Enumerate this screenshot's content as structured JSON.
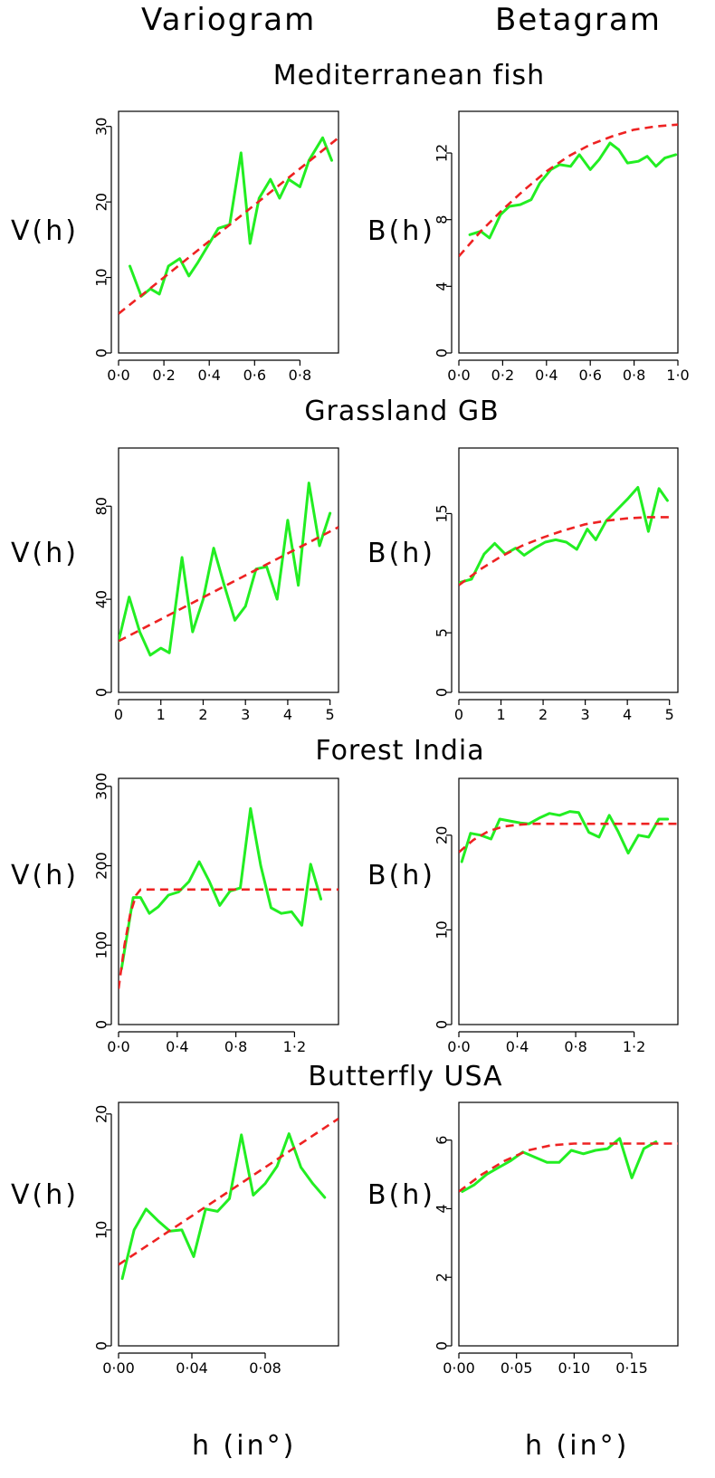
{
  "column_headers": [
    "Variogram",
    "Betagram"
  ],
  "x_axis_label": "h  (in°)",
  "colors": {
    "empirical": "#22ee22",
    "model": "#ee2222"
  },
  "chart_data": [
    {
      "type": "line",
      "title": "Mediterranean fish",
      "panel": "Variogram",
      "ylabel": "V(h)",
      "xlabel": "",
      "xlim": [
        0,
        0.97
      ],
      "ylim": [
        0,
        32
      ],
      "xticks": [
        0,
        0.2,
        0.4,
        0.6,
        0.8
      ],
      "xtick_labels": [
        "0·0",
        "0·2",
        "0·4",
        "0·6",
        "0·8"
      ],
      "yticks": [
        0,
        10,
        20,
        30
      ],
      "ytick_labels": [
        "0",
        "10",
        "20",
        "30"
      ],
      "series": [
        {
          "style": "solid",
          "x": [
            0.05,
            0.1,
            0.14,
            0.18,
            0.22,
            0.27,
            0.31,
            0.35,
            0.4,
            0.44,
            0.49,
            0.54,
            0.58,
            0.62,
            0.67,
            0.71,
            0.75,
            0.8,
            0.84,
            0.9,
            0.94
          ],
          "y": [
            11.5,
            7.5,
            8.5,
            7.8,
            11.5,
            12.5,
            10.2,
            12,
            14.5,
            16.5,
            17,
            26.5,
            14.5,
            20.5,
            23,
            20.5,
            23,
            22,
            25.5,
            28.5,
            25.5
          ]
        },
        {
          "style": "dashed",
          "x": [
            0,
            0.97
          ],
          "y": [
            5.2,
            28.5
          ]
        }
      ]
    },
    {
      "type": "line",
      "title": "",
      "panel": "Betagram",
      "ylabel": "B(h)",
      "xlabel": "",
      "xlim": [
        0,
        1.0
      ],
      "ylim": [
        0,
        14.5
      ],
      "xticks": [
        0,
        0.2,
        0.4,
        0.6,
        0.8,
        1.0
      ],
      "xtick_labels": [
        "0·0",
        "0·2",
        "0·4",
        "0·6",
        "0·8",
        "1·0"
      ],
      "yticks": [
        0,
        4,
        8,
        12
      ],
      "ytick_labels": [
        "0",
        "4",
        "8",
        "12"
      ],
      "series": [
        {
          "style": "solid",
          "x": [
            0.05,
            0.1,
            0.14,
            0.19,
            0.23,
            0.28,
            0.33,
            0.37,
            0.42,
            0.46,
            0.51,
            0.55,
            0.6,
            0.64,
            0.69,
            0.73,
            0.77,
            0.82,
            0.86,
            0.9,
            0.94,
            0.99
          ],
          "y": [
            7.1,
            7.3,
            6.9,
            8.3,
            8.8,
            8.9,
            9.2,
            10.2,
            11,
            11.3,
            11.2,
            11.9,
            11,
            11.6,
            12.6,
            12.2,
            11.4,
            11.5,
            11.8,
            11.2,
            11.7,
            11.9
          ]
        },
        {
          "style": "dashed",
          "x": [
            0,
            0.1,
            0.2,
            0.3,
            0.4,
            0.5,
            0.6,
            0.7,
            0.8,
            0.9,
            1.0
          ],
          "y": [
            5.8,
            7.3,
            8.6,
            9.8,
            10.9,
            11.8,
            12.5,
            13.0,
            13.4,
            13.6,
            13.7
          ]
        }
      ]
    },
    {
      "type": "line",
      "title": "Grassland GB",
      "panel": "Variogram",
      "ylabel": "V(h)",
      "xlabel": "",
      "xlim": [
        0,
        5.2
      ],
      "ylim": [
        0,
        105
      ],
      "xticks": [
        0,
        1,
        2,
        3,
        4,
        5
      ],
      "xtick_labels": [
        "0",
        "1",
        "2",
        "3",
        "4",
        "5"
      ],
      "yticks": [
        0,
        40,
        80
      ],
      "ytick_labels": [
        "0",
        "40",
        "80"
      ],
      "series": [
        {
          "style": "solid",
          "x": [
            0,
            0.25,
            0.5,
            0.75,
            1.0,
            1.2,
            1.5,
            1.75,
            2.0,
            2.25,
            2.5,
            2.75,
            3.0,
            3.25,
            3.5,
            3.75,
            4.0,
            4.25,
            4.5,
            4.75,
            5.0
          ],
          "y": [
            22,
            41,
            26,
            16,
            19,
            17,
            58,
            26,
            40,
            62,
            46,
            31,
            37,
            53,
            54,
            40,
            74,
            46,
            90,
            63,
            77
          ]
        },
        {
          "style": "dashed",
          "x": [
            0,
            5.2
          ],
          "y": [
            22,
            71
          ]
        }
      ]
    },
    {
      "type": "line",
      "title": "",
      "panel": "Betagram",
      "ylabel": "B(h)",
      "xlabel": "",
      "xlim": [
        0,
        5.2
      ],
      "ylim": [
        0,
        20.5
      ],
      "xticks": [
        0,
        1,
        2,
        3,
        4,
        5
      ],
      "xtick_labels": [
        "0",
        "1",
        "2",
        "3",
        "4",
        "5"
      ],
      "yticks": [
        0,
        5,
        15
      ],
      "ytick_labels": [
        "0",
        "5",
        "15"
      ],
      "series": [
        {
          "style": "solid",
          "x": [
            0,
            0.3,
            0.6,
            0.85,
            1.1,
            1.35,
            1.55,
            1.8,
            2.05,
            2.3,
            2.55,
            2.8,
            3.05,
            3.25,
            3.5,
            3.75,
            4.0,
            4.25,
            4.5,
            4.75,
            4.95
          ],
          "y": [
            9.2,
            9.5,
            11.6,
            12.5,
            11.6,
            12.1,
            11.5,
            12.1,
            12.6,
            12.8,
            12.6,
            12,
            13.7,
            12.8,
            14.4,
            15.3,
            16.2,
            17.2,
            13.5,
            17.1,
            16.1
          ]
        },
        {
          "style": "dashed",
          "x": [
            0,
            0.5,
            1.0,
            1.5,
            2.0,
            2.5,
            3.0,
            3.5,
            4.0,
            4.5,
            5.0
          ],
          "y": [
            9.0,
            10.3,
            11.4,
            12.3,
            13.0,
            13.6,
            14.1,
            14.4,
            14.6,
            14.7,
            14.7
          ]
        }
      ]
    },
    {
      "type": "line",
      "title": "Forest India",
      "panel": "Variogram",
      "ylabel": "V(h)",
      "xlabel": "",
      "xlim": [
        0,
        1.5
      ],
      "ylim": [
        0,
        310
      ],
      "xticks": [
        0,
        0.4,
        0.8,
        1.2
      ],
      "xtick_labels": [
        "0·0",
        "0·4",
        "0·8",
        "1·2"
      ],
      "yticks": [
        0,
        100,
        200,
        300
      ],
      "ytick_labels": [
        "0",
        "100",
        "200",
        "300"
      ],
      "series": [
        {
          "style": "solid",
          "x": [
            0.02,
            0.06,
            0.1,
            0.15,
            0.21,
            0.27,
            0.34,
            0.41,
            0.48,
            0.55,
            0.62,
            0.69,
            0.76,
            0.83,
            0.9,
            0.97,
            1.04,
            1.11,
            1.18,
            1.25,
            1.31,
            1.38
          ],
          "y": [
            70,
            115,
            160,
            160,
            140,
            148,
            163,
            167,
            180,
            205,
            180,
            150,
            168,
            172,
            272,
            200,
            147,
            140,
            142,
            125,
            202,
            158
          ]
        },
        {
          "style": "dashed",
          "x": [
            0,
            0.04,
            0.08,
            0.12,
            0.15,
            1.5
          ],
          "y": [
            45,
            100,
            140,
            163,
            170,
            170
          ]
        }
      ]
    },
    {
      "type": "line",
      "title": "",
      "panel": "Betagram",
      "ylabel": "B(h)",
      "xlabel": "",
      "xlim": [
        0,
        1.5
      ],
      "ylim": [
        0,
        26
      ],
      "xticks": [
        0,
        0.4,
        0.8,
        1.2
      ],
      "xtick_labels": [
        "0·0",
        "0·4",
        "0·8",
        "1·2"
      ],
      "yticks": [
        0,
        10,
        20
      ],
      "ytick_labels": [
        "0",
        "10",
        "20"
      ],
      "series": [
        {
          "style": "solid",
          "x": [
            0.02,
            0.08,
            0.15,
            0.22,
            0.28,
            0.35,
            0.42,
            0.48,
            0.55,
            0.62,
            0.69,
            0.76,
            0.82,
            0.89,
            0.96,
            1.03,
            1.09,
            1.16,
            1.23,
            1.3,
            1.37,
            1.43
          ],
          "y": [
            17.2,
            20.2,
            20,
            19.6,
            21.7,
            21.5,
            21.3,
            21.2,
            21.8,
            22.3,
            22.1,
            22.5,
            22.4,
            20.3,
            19.8,
            22.1,
            20.4,
            18.1,
            20,
            19.8,
            21.7,
            21.7
          ]
        },
        {
          "style": "dashed",
          "x": [
            0,
            0.1,
            0.2,
            0.3,
            0.4,
            0.5,
            0.6,
            0.8,
            1.0,
            1.2,
            1.5
          ],
          "y": [
            18.2,
            19.5,
            20.4,
            20.9,
            21.1,
            21.2,
            21.2,
            21.2,
            21.2,
            21.2,
            21.2
          ]
        }
      ]
    },
    {
      "type": "line",
      "title": "Butterfly USA",
      "panel": "Variogram",
      "ylabel": "V(h)",
      "xlabel": "",
      "xlim": [
        0,
        0.12
      ],
      "ylim": [
        0,
        21
      ],
      "xticks": [
        0,
        0.04,
        0.08
      ],
      "xtick_labels": [
        "0·00",
        "0·04",
        "0·08"
      ],
      "yticks": [
        0,
        10,
        20
      ],
      "ytick_labels": [
        "0",
        "10",
        "20"
      ],
      "series": [
        {
          "style": "solid",
          "x": [
            0.002,
            0.0085,
            0.015,
            0.0215,
            0.028,
            0.0345,
            0.041,
            0.0475,
            0.054,
            0.0605,
            0.067,
            0.0735,
            0.08,
            0.0865,
            0.093,
            0.0995,
            0.106,
            0.1125
          ],
          "y": [
            5.8,
            10,
            11.8,
            10.8,
            9.9,
            10,
            7.7,
            11.8,
            11.6,
            12.7,
            18.2,
            13,
            14,
            15.5,
            18.3,
            15.4,
            14,
            12.8
          ]
        },
        {
          "style": "dashed",
          "x": [
            0,
            0.12
          ],
          "y": [
            7,
            19.6
          ]
        }
      ]
    },
    {
      "type": "line",
      "title": "",
      "panel": "Betagram",
      "ylabel": "B(h)",
      "xlabel": "",
      "xlim": [
        0,
        0.19
      ],
      "ylim": [
        0,
        7.1
      ],
      "xticks": [
        0,
        0.05,
        0.1,
        0.15
      ],
      "xtick_labels": [
        "0·00",
        "0·05",
        "0·10",
        "0·15"
      ],
      "yticks": [
        0,
        2,
        4,
        6
      ],
      "ytick_labels": [
        "0",
        "2",
        "4",
        "6"
      ],
      "series": [
        {
          "style": "solid",
          "x": [
            0.003,
            0.0135,
            0.024,
            0.0345,
            0.045,
            0.0555,
            0.066,
            0.0765,
            0.087,
            0.0975,
            0.108,
            0.1185,
            0.129,
            0.1395,
            0.15,
            0.1605,
            0.171
          ],
          "y": [
            4.5,
            4.7,
            5,
            5.2,
            5.4,
            5.65,
            5.5,
            5.35,
            5.35,
            5.7,
            5.6,
            5.7,
            5.75,
            6.05,
            4.9,
            5.75,
            5.95
          ]
        },
        {
          "style": "dashed",
          "x": [
            0,
            0.02,
            0.04,
            0.06,
            0.08,
            0.1,
            0.12,
            0.14,
            0.16,
            0.19
          ],
          "y": [
            4.5,
            5.0,
            5.4,
            5.7,
            5.85,
            5.9,
            5.9,
            5.9,
            5.9,
            5.9
          ]
        }
      ]
    }
  ]
}
